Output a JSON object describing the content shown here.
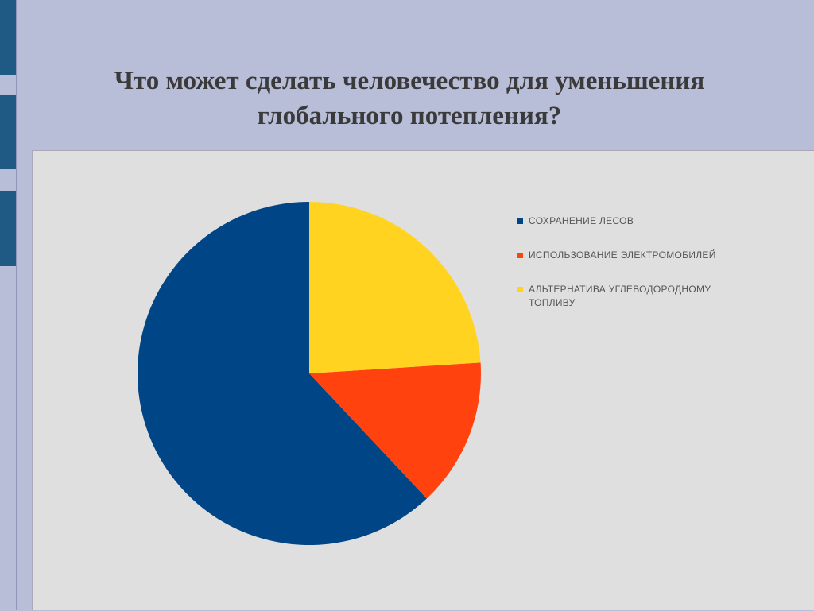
{
  "slide": {
    "title_line1": "Что может сделать человечество для уменьшения",
    "title_line2": "глобального потепления?"
  },
  "colors": {
    "background": "#b8bdd8",
    "chart_background": "#dfdfdf",
    "accent_bar": "#1f5a84"
  },
  "chart_data": {
    "type": "pie",
    "title": "",
    "categories": [
      "СОХРАНЕНИЕ ЛЕСОВ",
      "ИСПОЛЬЗОВАНИЕ ЭЛЕКТРОМОБИЛЕЙ",
      "АЛЬТЕРНАТИВА УГЛЕВОДОРОДНОМУ ТОПЛИВУ"
    ],
    "values": [
      62,
      14,
      24
    ],
    "colors": [
      "#004586",
      "#ff420e",
      "#ffd320"
    ],
    "legend_position": "right",
    "start_angle": "12 o'clock",
    "direction": "counterclockwise"
  },
  "legend": [
    {
      "label": "СОХРАНЕНИЕ ЛЕСОВ",
      "color": "#004586"
    },
    {
      "label": "ИСПОЛЬЗОВАНИЕ ЭЛЕКТРОМОБИЛЕЙ",
      "color": "#ff420e"
    },
    {
      "label": "АЛЬТЕРНАТИВА УГЛЕВОДОРОДНОМУ ТОПЛИВУ",
      "color": "#ffd320"
    }
  ]
}
